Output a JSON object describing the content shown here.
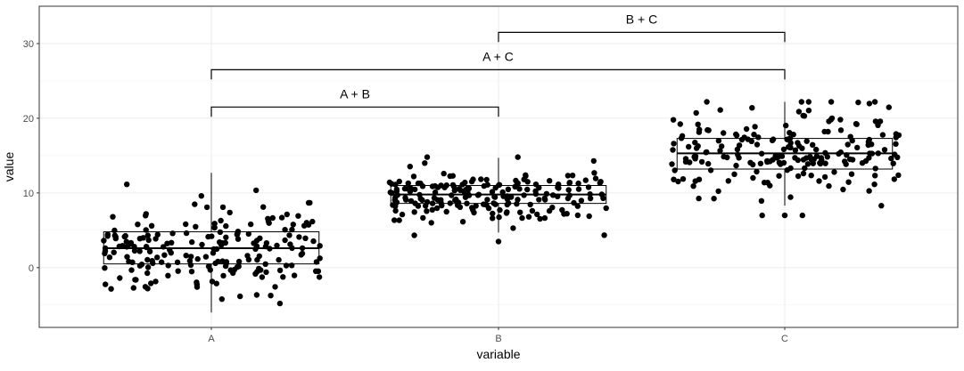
{
  "chart_data": {
    "type": "scatter",
    "subtype": "jittered box plot with significance brackets",
    "xlabel": "variable",
    "ylabel": "value",
    "categories": [
      "A",
      "B",
      "C"
    ],
    "ylim": [
      -8,
      35
    ],
    "yticks": [
      0,
      10,
      20,
      30
    ],
    "grid": true,
    "theme": "white background, light grey major and minor gridlines, dark panel border",
    "points_per_group": 200,
    "groups": [
      {
        "name": "A",
        "box": {
          "whisker_low": -6,
          "q1": 0.5,
          "median": 2.6,
          "q3": 4.8,
          "whisker_high": 12.7
        },
        "point_range": [
          -6,
          12.7
        ],
        "jitter_width": 0.38
      },
      {
        "name": "B",
        "box": {
          "whisker_low": 4.7,
          "q1": 8.6,
          "median": 9.8,
          "q3": 11.0,
          "whisker_high": 14.7
        },
        "outliers": [
          3.5
        ],
        "point_range": [
          3.5,
          14.8
        ],
        "jitter_width": 0.38
      },
      {
        "name": "C",
        "box": {
          "whisker_low": 8.3,
          "q1": 13.2,
          "median": 15.3,
          "q3": 17.3,
          "whisker_high": 22.2
        },
        "outliers": [
          7.0
        ],
        "point_range": [
          7.0,
          22.2
        ],
        "jitter_width": 0.4
      }
    ],
    "annotations": [
      {
        "label": "A + B",
        "from": "A",
        "to": "B",
        "y": 21.5,
        "tick_drop": 1.3
      },
      {
        "label": "A + C",
        "from": "A",
        "to": "C",
        "y": 26.5,
        "tick_drop": 1.3
      },
      {
        "label": "B + C",
        "from": "B",
        "to": "C",
        "y": 31.5,
        "tick_drop": 1.3
      }
    ],
    "colors": {
      "points": "#000000",
      "box": "#000000",
      "grid_major": "#ebebeb",
      "grid_minor": "#f4f4f4",
      "border": "#333333"
    }
  }
}
